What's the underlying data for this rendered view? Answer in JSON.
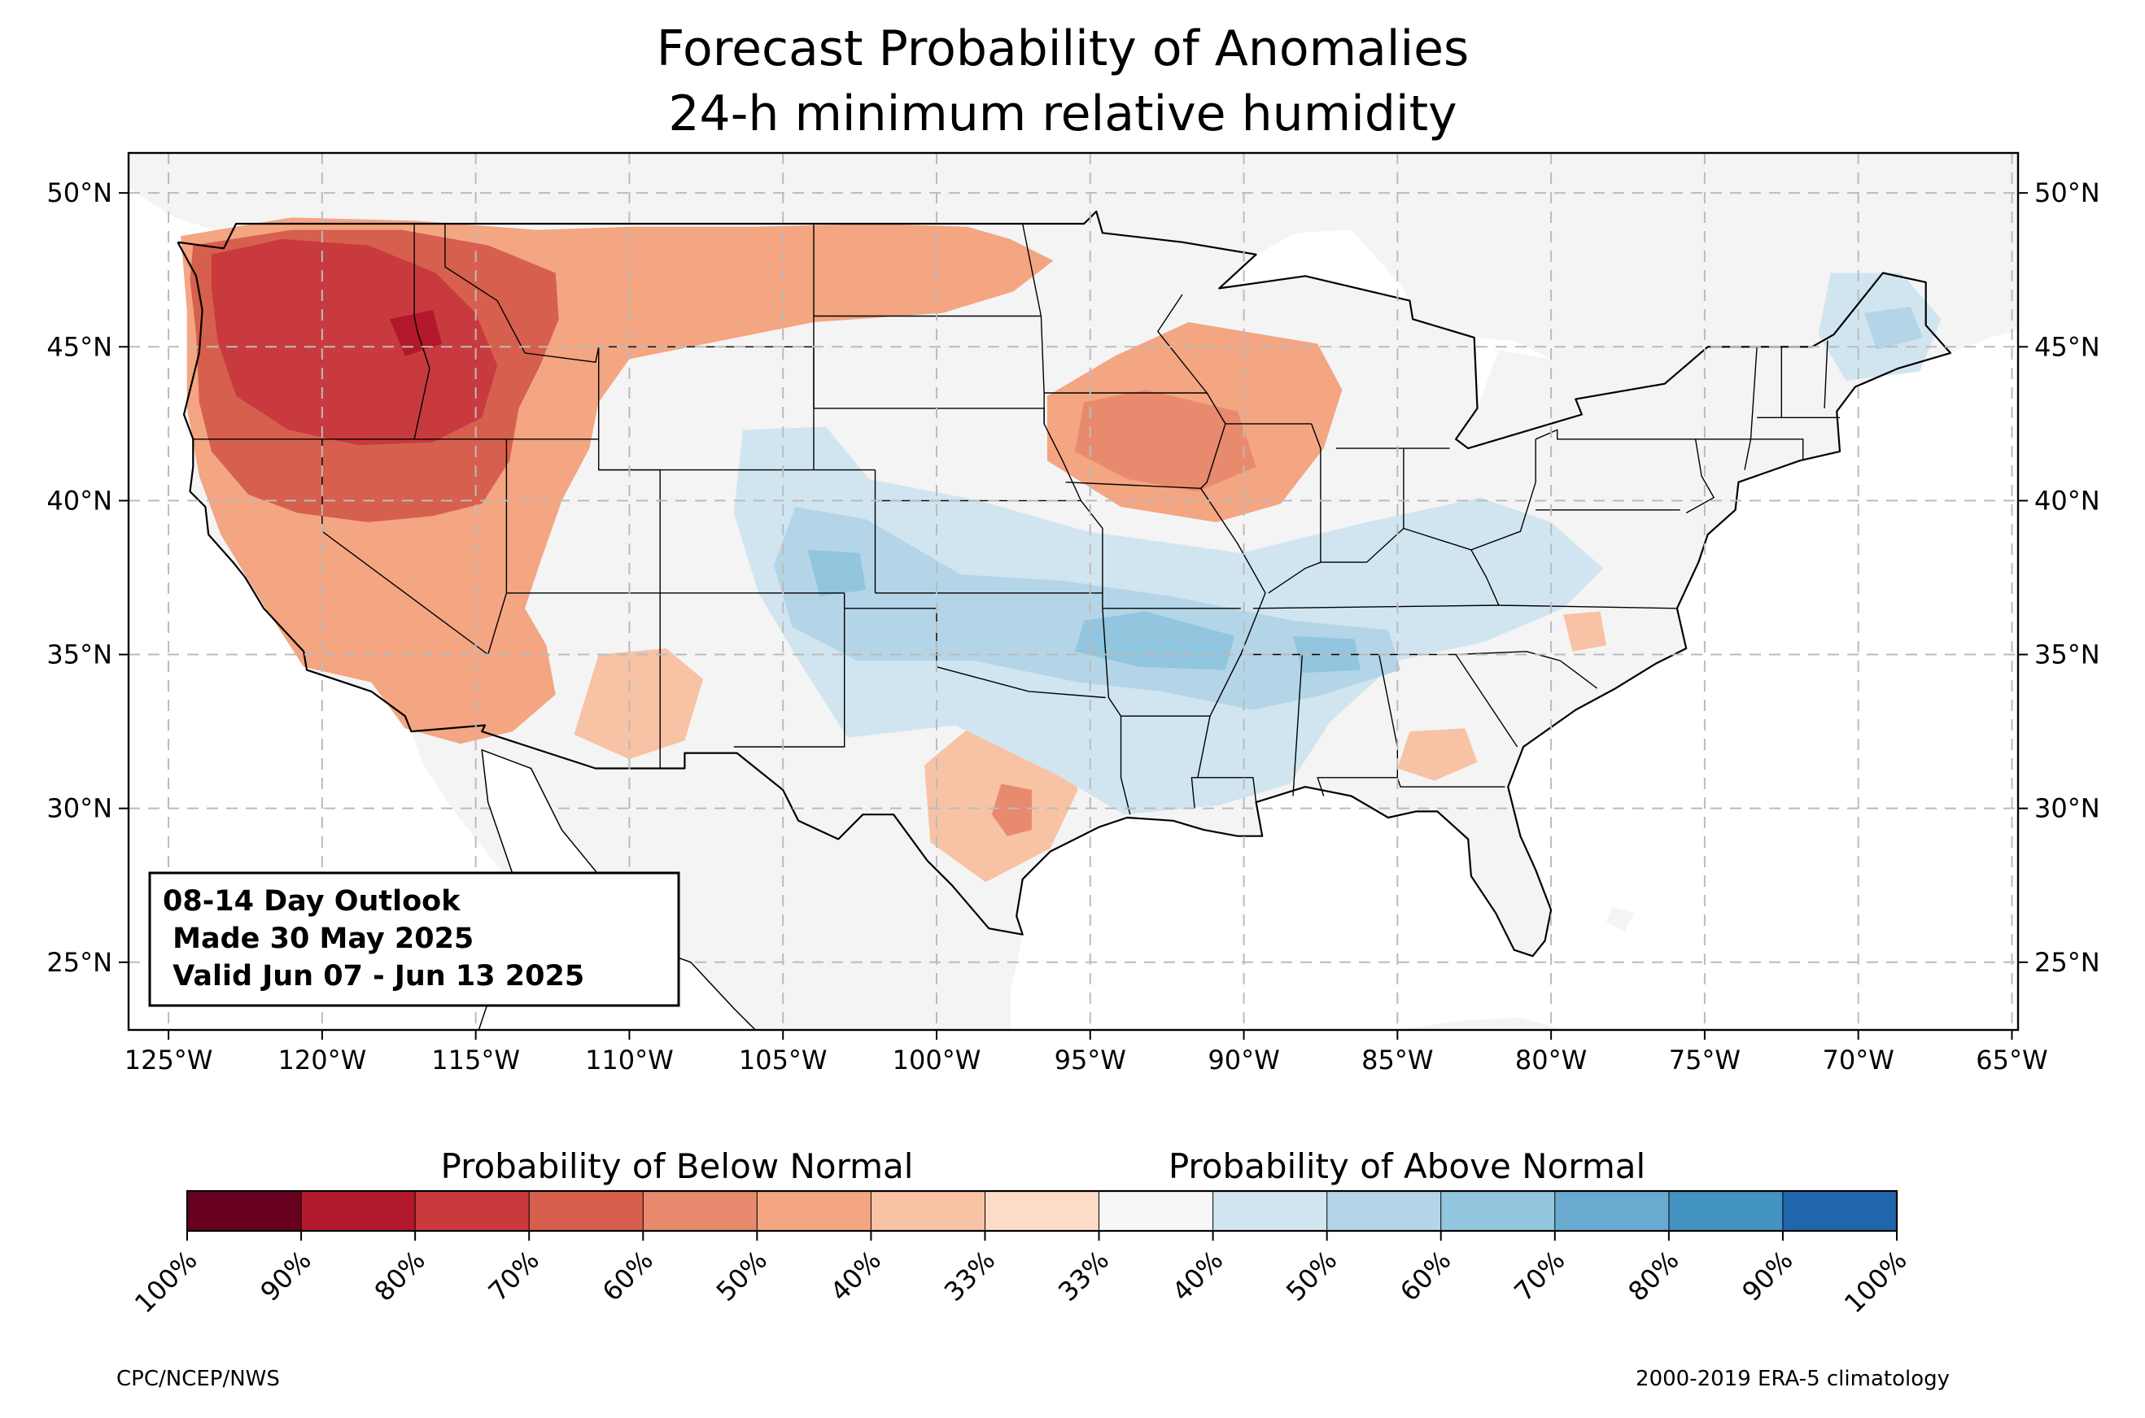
{
  "title": {
    "line1": "Forecast Probability of Anomalies",
    "line2": "24-h minimum relative humidity"
  },
  "map": {
    "lon_range": [
      -126.3,
      -64.8
    ],
    "lat_range": [
      22.8,
      51.3
    ],
    "lon_ticks": [
      {
        "value": -125,
        "label": "125°W"
      },
      {
        "value": -120,
        "label": "120°W"
      },
      {
        "value": -115,
        "label": "115°W"
      },
      {
        "value": -110,
        "label": "110°W"
      },
      {
        "value": -105,
        "label": "105°W"
      },
      {
        "value": -100,
        "label": "100°W"
      },
      {
        "value": -95,
        "label": "95°W"
      },
      {
        "value": -90,
        "label": "90°W"
      },
      {
        "value": -85,
        "label": "85°W"
      },
      {
        "value": -80,
        "label": "80°W"
      },
      {
        "value": -75,
        "label": "75°W"
      },
      {
        "value": -70,
        "label": "70°W"
      },
      {
        "value": -65,
        "label": "65°W"
      }
    ],
    "lat_ticks": [
      {
        "value": 50,
        "label": "50°N"
      },
      {
        "value": 45,
        "label": "45°N"
      },
      {
        "value": 40,
        "label": "40°N"
      },
      {
        "value": 35,
        "label": "35°N"
      },
      {
        "value": 30,
        "label": "30°N"
      },
      {
        "value": 25,
        "label": "25°N"
      }
    ],
    "grid": true,
    "colors": {
      "land": "#f4f4f4",
      "water": "#ffffff",
      "border": "#000000",
      "county": "#999999",
      "grid": "#bbbbbb"
    },
    "anomaly_regions": [
      {
        "category": "below",
        "level": "50%",
        "points": [
          [
            -124.6,
            48.6
          ],
          [
            -121,
            49.2
          ],
          [
            -117,
            49.1
          ],
          [
            -113,
            48.8
          ],
          [
            -110,
            48.9
          ],
          [
            -106,
            48.9
          ],
          [
            -102,
            49
          ],
          [
            -99,
            48.9
          ],
          [
            -97.6,
            48.5
          ],
          [
            -96.2,
            47.8
          ],
          [
            -97.5,
            46.8
          ],
          [
            -99.8,
            46.1
          ],
          [
            -104,
            45.8
          ],
          [
            -108,
            45
          ],
          [
            -110,
            44.6
          ],
          [
            -111,
            43.2
          ],
          [
            -111.3,
            41.7
          ],
          [
            -112.2,
            40
          ],
          [
            -112.9,
            38
          ],
          [
            -113.4,
            36.5
          ],
          [
            -112.7,
            35.3
          ],
          [
            -112.4,
            33.7
          ],
          [
            -113.8,
            32.5
          ],
          [
            -115.5,
            32.1
          ],
          [
            -117.3,
            32.6
          ],
          [
            -118.4,
            34.1
          ],
          [
            -120.6,
            34.6
          ],
          [
            -121.9,
            36.6
          ],
          [
            -123.3,
            38.9
          ],
          [
            -124,
            40.8
          ],
          [
            -124.4,
            43
          ],
          [
            -124.4,
            46.2
          ]
        ]
      },
      {
        "category": "below",
        "level": "70%",
        "points": [
          [
            -124.2,
            48.3
          ],
          [
            -121,
            48.8
          ],
          [
            -117.4,
            48.8
          ],
          [
            -114.6,
            48.3
          ],
          [
            -112.4,
            47.4
          ],
          [
            -112.3,
            45.9
          ],
          [
            -112.9,
            44.4
          ],
          [
            -113.6,
            43
          ],
          [
            -113.9,
            41.3
          ],
          [
            -114.8,
            39.9
          ],
          [
            -116.4,
            39.5
          ],
          [
            -118.5,
            39.3
          ],
          [
            -120.8,
            39.6
          ],
          [
            -122.4,
            40.2
          ],
          [
            -123.6,
            41.6
          ],
          [
            -124,
            43.2
          ],
          [
            -124.1,
            45.4
          ],
          [
            -124.3,
            47.2
          ]
        ]
      },
      {
        "category": "below",
        "level": "80%",
        "points": [
          [
            -123.6,
            48
          ],
          [
            -121.3,
            48.5
          ],
          [
            -118.5,
            48.3
          ],
          [
            -116.3,
            47.4
          ],
          [
            -115,
            46.1
          ],
          [
            -114.3,
            44.4
          ],
          [
            -114.8,
            42.7
          ],
          [
            -116.4,
            41.9
          ],
          [
            -118.8,
            41.8
          ],
          [
            -121.1,
            42.3
          ],
          [
            -122.8,
            43.4
          ],
          [
            -123.4,
            45.2
          ],
          [
            -123.6,
            46.9
          ]
        ]
      },
      {
        "category": "below",
        "level": "90%",
        "points": [
          [
            -117.8,
            45.9
          ],
          [
            -116.4,
            46.2
          ],
          [
            -116.1,
            45.1
          ],
          [
            -117.3,
            44.7
          ]
        ]
      },
      {
        "category": "below",
        "level": "40%",
        "points": [
          [
            -111,
            35
          ],
          [
            -108.8,
            35.2
          ],
          [
            -107.6,
            34.2
          ],
          [
            -108.2,
            32.2
          ],
          [
            -110,
            31.6
          ],
          [
            -111.8,
            32.4
          ]
        ]
      },
      {
        "category": "below",
        "level": "50%",
        "points": [
          [
            -91.8,
            45.8
          ],
          [
            -87.6,
            45.1
          ],
          [
            -86.8,
            43.6
          ],
          [
            -87.4,
            41.7
          ],
          [
            -88.8,
            39.9
          ],
          [
            -90.9,
            39.3
          ],
          [
            -94,
            39.8
          ],
          [
            -96.4,
            41.3
          ],
          [
            -96.4,
            43.4
          ],
          [
            -94.2,
            44.7
          ]
        ]
      },
      {
        "category": "below",
        "level": "60%",
        "points": [
          [
            -95.2,
            43.2
          ],
          [
            -93.2,
            43.6
          ],
          [
            -90.2,
            42.9
          ],
          [
            -89.6,
            41.1
          ],
          [
            -91.5,
            40.3
          ],
          [
            -93.8,
            40.7
          ],
          [
            -95.5,
            41.6
          ]
        ]
      },
      {
        "category": "below",
        "level": "40%",
        "points": [
          [
            -98.6,
            32.9
          ],
          [
            -96.3,
            32.6
          ],
          [
            -95.4,
            30.6
          ],
          [
            -96.3,
            28.7
          ],
          [
            -98.4,
            27.6
          ],
          [
            -100.2,
            28.9
          ],
          [
            -100.4,
            31.4
          ]
        ]
      },
      {
        "category": "below",
        "level": "60%",
        "points": [
          [
            -97.9,
            30.8
          ],
          [
            -96.9,
            30.6
          ],
          [
            -96.9,
            29.3
          ],
          [
            -97.7,
            29.1
          ],
          [
            -98.2,
            29.8
          ]
        ]
      },
      {
        "category": "below",
        "level": "40%",
        "points": [
          [
            -84.6,
            32.5
          ],
          [
            -82.8,
            32.6
          ],
          [
            -82.4,
            31.5
          ],
          [
            -83.8,
            30.9
          ],
          [
            -85,
            31.3
          ]
        ]
      },
      {
        "category": "below",
        "level": "40%",
        "points": [
          [
            -79.6,
            36.3
          ],
          [
            -78.4,
            36.4
          ],
          [
            -78.2,
            35.3
          ],
          [
            -79.3,
            35.1
          ]
        ]
      },
      {
        "category": "above",
        "level": "40%",
        "points": [
          [
            -106.3,
            42.3
          ],
          [
            -103.6,
            42.4
          ],
          [
            -102.2,
            40.7
          ],
          [
            -98.6,
            40
          ],
          [
            -95.1,
            39
          ],
          [
            -90.1,
            38.3
          ],
          [
            -86,
            39.3
          ],
          [
            -82.3,
            40.1
          ],
          [
            -80,
            39.3
          ],
          [
            -78.3,
            37.8
          ],
          [
            -79.6,
            36.5
          ],
          [
            -82.2,
            35.4
          ],
          [
            -85,
            34.8
          ],
          [
            -87.2,
            32.8
          ],
          [
            -88.5,
            30.8
          ],
          [
            -90.8,
            30.1
          ],
          [
            -93.9,
            29.8
          ],
          [
            -96.1,
            31.1
          ],
          [
            -99.4,
            32.7
          ],
          [
            -102.9,
            32.3
          ],
          [
            -104.3,
            34.5
          ],
          [
            -105.8,
            37
          ],
          [
            -106.6,
            39.6
          ]
        ]
      },
      {
        "category": "above",
        "level": "50%",
        "points": [
          [
            -104.6,
            39.8
          ],
          [
            -102.3,
            39.4
          ],
          [
            -99.2,
            37.6
          ],
          [
            -95.9,
            37.4
          ],
          [
            -92.4,
            36.9
          ],
          [
            -88.4,
            36.1
          ],
          [
            -85.3,
            35.8
          ],
          [
            -84.9,
            34.5
          ],
          [
            -87.4,
            33.7
          ],
          [
            -89.7,
            33.2
          ],
          [
            -92.7,
            33.8
          ],
          [
            -95.4,
            34.1
          ],
          [
            -98.8,
            34.8
          ],
          [
            -102.6,
            34.8
          ],
          [
            -104.7,
            35.9
          ],
          [
            -105.3,
            37.9
          ]
        ]
      },
      {
        "category": "above",
        "level": "60%",
        "points": [
          [
            -104.2,
            38.4
          ],
          [
            -102.5,
            38.3
          ],
          [
            -102.3,
            37.1
          ],
          [
            -103.8,
            36.9
          ]
        ]
      },
      {
        "category": "above",
        "level": "60%",
        "points": [
          [
            -95.2,
            36.1
          ],
          [
            -93.2,
            36.4
          ],
          [
            -90.3,
            35.6
          ],
          [
            -90.6,
            34.5
          ],
          [
            -93.4,
            34.6
          ],
          [
            -95.5,
            35.1
          ]
        ]
      },
      {
        "category": "above",
        "level": "60%",
        "points": [
          [
            -88.4,
            35.6
          ],
          [
            -86.4,
            35.5
          ],
          [
            -86.2,
            34.5
          ],
          [
            -88.1,
            34.4
          ]
        ]
      },
      {
        "category": "above",
        "level": "40%",
        "points": [
          [
            -70.9,
            47.4
          ],
          [
            -68.6,
            47.4
          ],
          [
            -67.3,
            45.9
          ],
          [
            -68,
            44.2
          ],
          [
            -70.4,
            43.9
          ],
          [
            -71.3,
            45.4
          ]
        ]
      },
      {
        "category": "above",
        "level": "50%",
        "points": [
          [
            -69.8,
            46.1
          ],
          [
            -68.3,
            46.3
          ],
          [
            -67.9,
            45.3
          ],
          [
            -69.4,
            44.9
          ]
        ]
      }
    ],
    "info_box": {
      "line1": "08-14 Day Outlook",
      "line2": " Made 30 May 2025",
      "line3": " Valid Jun 07 - Jun 13 2025"
    }
  },
  "colorbar": {
    "below_label": "Probability of Below Normal",
    "above_label": "Probability of Above Normal",
    "colors": [
      "#67001f",
      "#b2182b",
      "#c93a3f",
      "#d6604d",
      "#e88a6e",
      "#f4a582",
      "#f8c2a4",
      "#fddbc7",
      "#f7f7f7",
      "#d1e5f0",
      "#b4d5e8",
      "#92c5de",
      "#6aaad0",
      "#4393c3",
      "#2166ac",
      "#164f8e",
      "#053061"
    ],
    "tick_labels": [
      "100%",
      "90%",
      "80%",
      "70%",
      "60%",
      "50%",
      "40%",
      "33%",
      "33%",
      "40%",
      "50%",
      "60%",
      "70%",
      "80%",
      "90%",
      "100%"
    ]
  },
  "credits": {
    "left": "CPC/NCEP/NWS",
    "right": "2000-2019 ERA-5 climatology"
  }
}
